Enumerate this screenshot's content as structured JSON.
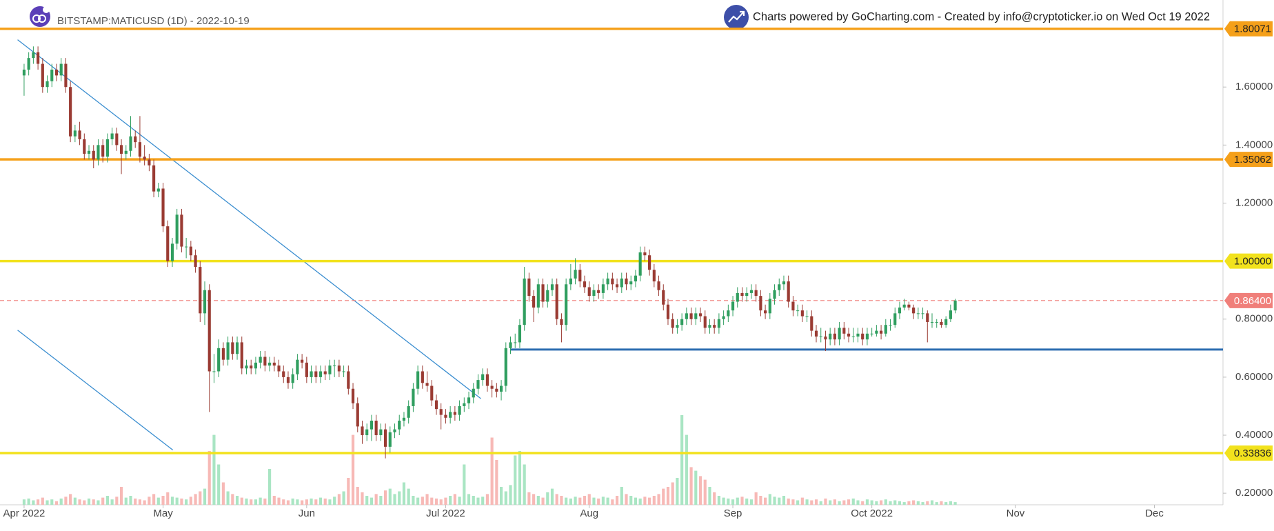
{
  "chart_data": {
    "type": "candlestick",
    "title": "BITSTAMP:MATICUSD (1D) - 2022-10-19",
    "attribution": "Charts powered by GoCharting.com - Created by info@cryptoticker.io on Wed Oct 19 2022",
    "up_color": "#2f9e5f",
    "down_color": "#9a3b33",
    "volume_up_color": "#a9e5c3",
    "volume_down_color": "#f7b9b6",
    "xlim": [
      -5.2,
      258.8
    ],
    "xticks": [
      {
        "value": 0,
        "label": "Apr 2022"
      },
      {
        "value": 30,
        "label": "May"
      },
      {
        "value": 61,
        "label": "Jun"
      },
      {
        "value": 91,
        "label": "Jul 2022"
      },
      {
        "value": 122,
        "label": "Aug"
      },
      {
        "value": 153,
        "label": "Sep"
      },
      {
        "value": 183,
        "label": "Oct 2022"
      },
      {
        "value": 214,
        "label": "Nov"
      },
      {
        "value": 244,
        "label": "Dec"
      }
    ],
    "ylim": [
      0.16,
      1.9
    ],
    "yticks": [
      {
        "value": 0.2,
        "label": "0.20000"
      },
      {
        "value": 0.4,
        "label": "0.40000"
      },
      {
        "value": 0.6,
        "label": "0.60000"
      },
      {
        "value": 0.8,
        "label": "0.80000"
      },
      {
        "value": 1.2,
        "label": "1.20000"
      },
      {
        "value": 1.4,
        "label": "1.40000"
      },
      {
        "value": 1.6,
        "label": "1.60000"
      }
    ],
    "levels": [
      {
        "value": 1.80071,
        "label": "1.80071",
        "color": "#f5a01a",
        "dashed": false
      },
      {
        "value": 1.35062,
        "label": "1.35062",
        "color": "#f5a01a",
        "dashed": false
      },
      {
        "value": 1.0,
        "label": "1.00000",
        "color": "#f2e21d",
        "dashed": false
      },
      {
        "value": 0.864,
        "label": "0.86400",
        "color": "#f07f7a",
        "dashed": true
      },
      {
        "value": 0.33836,
        "label": "0.33836",
        "color": "#f2e21d",
        "dashed": false
      }
    ],
    "drawings": [
      {
        "x": [
          105,
          258.8
        ],
        "y": [
          0.695,
          0.695
        ],
        "color": "#2b6cb0",
        "width": 3
      },
      {
        "x": [
          -1.4,
          98.6
        ],
        "y": [
          1.763,
          0.526
        ],
        "color": "#3b8ed0",
        "width": 1.3
      },
      {
        "x": [
          -1.4,
          32.1
        ],
        "y": [
          0.762,
          0.349
        ],
        "color": "#3b8ed0",
        "width": 1.3
      }
    ],
    "volume_lim": [
      0,
      100
    ],
    "ohlc": [
      [
        1.64,
        1.68,
        1.57,
        1.66
      ],
      [
        1.66,
        1.72,
        1.64,
        1.7
      ],
      [
        1.7,
        1.74,
        1.68,
        1.72
      ],
      [
        1.72,
        1.74,
        1.66,
        1.68
      ],
      [
        1.68,
        1.7,
        1.58,
        1.6
      ],
      [
        1.6,
        1.64,
        1.58,
        1.62
      ],
      [
        1.62,
        1.68,
        1.6,
        1.66
      ],
      [
        1.66,
        1.68,
        1.62,
        1.64
      ],
      [
        1.64,
        1.7,
        1.62,
        1.68
      ],
      [
        1.68,
        1.7,
        1.58,
        1.6
      ],
      [
        1.6,
        1.62,
        1.41,
        1.43
      ],
      [
        1.43,
        1.47,
        1.41,
        1.45
      ],
      [
        1.45,
        1.48,
        1.4,
        1.42
      ],
      [
        1.42,
        1.44,
        1.35,
        1.37
      ],
      [
        1.37,
        1.4,
        1.35,
        1.38
      ],
      [
        1.38,
        1.4,
        1.32,
        1.35
      ],
      [
        1.35,
        1.42,
        1.33,
        1.4
      ],
      [
        1.4,
        1.42,
        1.34,
        1.36
      ],
      [
        1.36,
        1.44,
        1.34,
        1.42
      ],
      [
        1.42,
        1.46,
        1.4,
        1.44
      ],
      [
        1.44,
        1.46,
        1.38,
        1.4
      ],
      [
        1.4,
        1.42,
        1.3,
        1.37
      ],
      [
        1.37,
        1.4,
        1.35,
        1.38
      ],
      [
        1.38,
        1.5,
        1.36,
        1.43
      ],
      [
        1.43,
        1.45,
        1.39,
        1.41
      ],
      [
        1.41,
        1.5,
        1.34,
        1.36
      ],
      [
        1.36,
        1.4,
        1.33,
        1.35
      ],
      [
        1.35,
        1.37,
        1.31,
        1.33
      ],
      [
        1.33,
        1.35,
        1.22,
        1.24
      ],
      [
        1.24,
        1.27,
        1.22,
        1.25
      ],
      [
        1.25,
        1.27,
        1.1,
        1.12
      ],
      [
        1.12,
        1.14,
        0.98,
        1.0
      ],
      [
        1.0,
        1.08,
        0.98,
        1.06
      ],
      [
        1.06,
        1.18,
        1.04,
        1.16
      ],
      [
        1.16,
        1.18,
        1.03,
        1.05
      ],
      [
        1.05,
        1.08,
        1.01,
        1.05
      ],
      [
        1.05,
        1.07,
        1.0,
        1.02
      ],
      [
        1.02,
        1.04,
        0.96,
        0.98
      ],
      [
        0.98,
        1.0,
        0.79,
        0.82
      ],
      [
        0.82,
        0.93,
        0.78,
        0.9
      ],
      [
        0.9,
        0.92,
        0.48,
        0.62
      ],
      [
        0.62,
        0.68,
        0.58,
        0.62
      ],
      [
        0.62,
        0.73,
        0.6,
        0.7
      ],
      [
        0.7,
        0.72,
        0.64,
        0.66
      ],
      [
        0.66,
        0.74,
        0.64,
        0.72
      ],
      [
        0.72,
        0.74,
        0.66,
        0.68
      ],
      [
        0.68,
        0.74,
        0.66,
        0.72
      ],
      [
        0.72,
        0.74,
        0.61,
        0.63
      ],
      [
        0.63,
        0.66,
        0.61,
        0.64
      ],
      [
        0.64,
        0.66,
        0.61,
        0.63
      ],
      [
        0.63,
        0.67,
        0.61,
        0.65
      ],
      [
        0.65,
        0.69,
        0.63,
        0.67
      ],
      [
        0.67,
        0.69,
        0.62,
        0.64
      ],
      [
        0.64,
        0.67,
        0.62,
        0.65
      ],
      [
        0.65,
        0.67,
        0.62,
        0.64
      ],
      [
        0.64,
        0.66,
        0.6,
        0.62
      ],
      [
        0.62,
        0.64,
        0.58,
        0.6
      ],
      [
        0.6,
        0.62,
        0.56,
        0.58
      ],
      [
        0.58,
        0.63,
        0.56,
        0.61
      ],
      [
        0.61,
        0.68,
        0.59,
        0.66
      ],
      [
        0.66,
        0.68,
        0.63,
        0.65
      ],
      [
        0.65,
        0.67,
        0.58,
        0.6
      ],
      [
        0.6,
        0.64,
        0.58,
        0.62
      ],
      [
        0.62,
        0.64,
        0.58,
        0.6
      ],
      [
        0.6,
        0.64,
        0.58,
        0.62
      ],
      [
        0.62,
        0.64,
        0.59,
        0.61
      ],
      [
        0.61,
        0.66,
        0.59,
        0.64
      ],
      [
        0.64,
        0.66,
        0.6,
        0.64
      ],
      [
        0.64,
        0.66,
        0.6,
        0.62
      ],
      [
        0.62,
        0.64,
        0.6,
        0.62
      ],
      [
        0.62,
        0.64,
        0.54,
        0.56
      ],
      [
        0.56,
        0.58,
        0.49,
        0.51
      ],
      [
        0.51,
        0.53,
        0.41,
        0.43
      ],
      [
        0.43,
        0.45,
        0.37,
        0.4
      ],
      [
        0.4,
        0.44,
        0.38,
        0.42
      ],
      [
        0.42,
        0.47,
        0.38,
        0.45
      ],
      [
        0.45,
        0.47,
        0.38,
        0.4
      ],
      [
        0.4,
        0.44,
        0.38,
        0.42
      ],
      [
        0.42,
        0.44,
        0.32,
        0.36
      ],
      [
        0.36,
        0.43,
        0.34,
        0.41
      ],
      [
        0.41,
        0.44,
        0.39,
        0.42
      ],
      [
        0.42,
        0.47,
        0.4,
        0.45
      ],
      [
        0.45,
        0.48,
        0.43,
        0.46
      ],
      [
        0.46,
        0.52,
        0.44,
        0.5
      ],
      [
        0.5,
        0.58,
        0.48,
        0.56
      ],
      [
        0.56,
        0.64,
        0.54,
        0.62
      ],
      [
        0.62,
        0.64,
        0.56,
        0.58
      ],
      [
        0.58,
        0.62,
        0.55,
        0.57
      ],
      [
        0.57,
        0.59,
        0.5,
        0.52
      ],
      [
        0.52,
        0.54,
        0.47,
        0.49
      ],
      [
        0.49,
        0.51,
        0.42,
        0.47
      ],
      [
        0.47,
        0.49,
        0.44,
        0.46
      ],
      [
        0.46,
        0.5,
        0.44,
        0.48
      ],
      [
        0.48,
        0.5,
        0.45,
        0.47
      ],
      [
        0.47,
        0.52,
        0.45,
        0.5
      ],
      [
        0.5,
        0.53,
        0.48,
        0.51
      ],
      [
        0.51,
        0.55,
        0.49,
        0.53
      ],
      [
        0.53,
        0.58,
        0.51,
        0.56
      ],
      [
        0.56,
        0.61,
        0.54,
        0.59
      ],
      [
        0.59,
        0.63,
        0.57,
        0.61
      ],
      [
        0.61,
        0.63,
        0.55,
        0.57
      ],
      [
        0.57,
        0.59,
        0.53,
        0.56
      ],
      [
        0.56,
        0.58,
        0.53,
        0.55
      ],
      [
        0.55,
        0.59,
        0.52,
        0.57
      ],
      [
        0.57,
        0.72,
        0.55,
        0.7
      ],
      [
        0.7,
        0.74,
        0.68,
        0.72
      ],
      [
        0.72,
        0.75,
        0.7,
        0.72
      ],
      [
        0.72,
        0.8,
        0.7,
        0.78
      ],
      [
        0.78,
        0.98,
        0.76,
        0.94
      ],
      [
        0.94,
        0.96,
        0.86,
        0.88
      ],
      [
        0.88,
        0.9,
        0.79,
        0.84
      ],
      [
        0.84,
        0.94,
        0.82,
        0.92
      ],
      [
        0.92,
        0.94,
        0.84,
        0.86
      ],
      [
        0.86,
        0.92,
        0.84,
        0.9
      ],
      [
        0.9,
        0.94,
        0.88,
        0.92
      ],
      [
        0.92,
        0.94,
        0.78,
        0.8
      ],
      [
        0.8,
        0.82,
        0.72,
        0.78
      ],
      [
        0.78,
        0.94,
        0.76,
        0.92
      ],
      [
        0.92,
        0.99,
        0.9,
        0.94
      ],
      [
        0.94,
        1.01,
        0.92,
        0.97
      ],
      [
        0.97,
        0.99,
        0.91,
        0.93
      ],
      [
        0.93,
        0.95,
        0.89,
        0.91
      ],
      [
        0.91,
        0.93,
        0.86,
        0.88
      ],
      [
        0.88,
        0.92,
        0.86,
        0.9
      ],
      [
        0.9,
        0.92,
        0.87,
        0.89
      ],
      [
        0.89,
        0.94,
        0.87,
        0.92
      ],
      [
        0.92,
        0.96,
        0.9,
        0.94
      ],
      [
        0.94,
        0.96,
        0.9,
        0.92
      ],
      [
        0.92,
        0.94,
        0.89,
        0.91
      ],
      [
        0.91,
        0.96,
        0.89,
        0.94
      ],
      [
        0.94,
        0.96,
        0.9,
        0.92
      ],
      [
        0.92,
        0.95,
        0.9,
        0.93
      ],
      [
        0.93,
        0.97,
        0.91,
        0.95
      ],
      [
        0.95,
        1.05,
        0.93,
        1.03
      ],
      [
        1.03,
        1.05,
        1.0,
        1.02
      ],
      [
        1.02,
        1.04,
        0.95,
        0.97
      ],
      [
        0.97,
        0.99,
        0.91,
        0.93
      ],
      [
        0.93,
        0.95,
        0.88,
        0.9
      ],
      [
        0.9,
        0.92,
        0.83,
        0.85
      ],
      [
        0.85,
        0.87,
        0.78,
        0.8
      ],
      [
        0.8,
        0.82,
        0.75,
        0.77
      ],
      [
        0.77,
        0.8,
        0.75,
        0.78
      ],
      [
        0.78,
        0.82,
        0.76,
        0.8
      ],
      [
        0.8,
        0.84,
        0.78,
        0.82
      ],
      [
        0.82,
        0.84,
        0.78,
        0.8
      ],
      [
        0.8,
        0.84,
        0.78,
        0.82
      ],
      [
        0.82,
        0.84,
        0.79,
        0.81
      ],
      [
        0.81,
        0.83,
        0.75,
        0.77
      ],
      [
        0.77,
        0.8,
        0.75,
        0.78
      ],
      [
        0.78,
        0.8,
        0.75,
        0.77
      ],
      [
        0.77,
        0.82,
        0.75,
        0.8
      ],
      [
        0.8,
        0.83,
        0.78,
        0.81
      ],
      [
        0.81,
        0.85,
        0.79,
        0.83
      ],
      [
        0.83,
        0.88,
        0.81,
        0.86
      ],
      [
        0.86,
        0.91,
        0.84,
        0.89
      ],
      [
        0.89,
        0.91,
        0.86,
        0.88
      ],
      [
        0.88,
        0.91,
        0.86,
        0.89
      ],
      [
        0.89,
        0.92,
        0.87,
        0.9
      ],
      [
        0.9,
        0.92,
        0.86,
        0.88
      ],
      [
        0.88,
        0.9,
        0.81,
        0.83
      ],
      [
        0.83,
        0.85,
        0.8,
        0.82
      ],
      [
        0.82,
        0.89,
        0.8,
        0.87
      ],
      [
        0.87,
        0.92,
        0.85,
        0.9
      ],
      [
        0.9,
        0.94,
        0.88,
        0.92
      ],
      [
        0.92,
        0.95,
        0.9,
        0.93
      ],
      [
        0.93,
        0.95,
        0.84,
        0.86
      ],
      [
        0.86,
        0.88,
        0.81,
        0.83
      ],
      [
        0.83,
        0.85,
        0.81,
        0.83
      ],
      [
        0.83,
        0.85,
        0.79,
        0.81
      ],
      [
        0.81,
        0.83,
        0.79,
        0.81
      ],
      [
        0.81,
        0.83,
        0.74,
        0.76
      ],
      [
        0.76,
        0.78,
        0.72,
        0.74
      ],
      [
        0.74,
        0.77,
        0.72,
        0.74
      ],
      [
        0.74,
        0.76,
        0.69,
        0.73
      ],
      [
        0.73,
        0.77,
        0.71,
        0.75
      ],
      [
        0.75,
        0.77,
        0.71,
        0.73
      ],
      [
        0.73,
        0.79,
        0.71,
        0.77
      ],
      [
        0.77,
        0.79,
        0.73,
        0.75
      ],
      [
        0.75,
        0.77,
        0.72,
        0.74
      ],
      [
        0.74,
        0.77,
        0.72,
        0.74
      ],
      [
        0.74,
        0.77,
        0.72,
        0.75
      ],
      [
        0.75,
        0.77,
        0.71,
        0.73
      ],
      [
        0.73,
        0.77,
        0.71,
        0.75
      ],
      [
        0.75,
        0.77,
        0.74,
        0.75
      ],
      [
        0.75,
        0.78,
        0.74,
        0.76
      ],
      [
        0.76,
        0.78,
        0.73,
        0.75
      ],
      [
        0.75,
        0.8,
        0.74,
        0.78
      ],
      [
        0.78,
        0.8,
        0.76,
        0.78
      ],
      [
        0.78,
        0.84,
        0.77,
        0.82
      ],
      [
        0.82,
        0.86,
        0.8,
        0.84
      ],
      [
        0.84,
        0.87,
        0.83,
        0.85
      ],
      [
        0.85,
        0.86,
        0.83,
        0.84
      ],
      [
        0.84,
        0.85,
        0.8,
        0.82
      ],
      [
        0.82,
        0.84,
        0.8,
        0.82
      ],
      [
        0.82,
        0.84,
        0.8,
        0.82
      ],
      [
        0.82,
        0.83,
        0.72,
        0.79
      ],
      [
        0.79,
        0.82,
        0.77,
        0.79
      ],
      [
        0.79,
        0.8,
        0.77,
        0.79
      ],
      [
        0.79,
        0.8,
        0.77,
        0.78
      ],
      [
        0.78,
        0.81,
        0.77,
        0.8
      ],
      [
        0.8,
        0.85,
        0.79,
        0.83
      ],
      [
        0.83,
        0.87,
        0.82,
        0.864
      ]
    ],
    "volume": [
      6,
      7,
      5,
      6,
      8,
      5,
      6,
      4,
      7,
      9,
      12,
      8,
      6,
      5,
      7,
      6,
      5,
      8,
      10,
      6,
      9,
      20,
      8,
      10,
      7,
      6,
      5,
      9,
      12,
      8,
      10,
      14,
      9,
      8,
      7,
      6,
      9,
      12,
      15,
      18,
      60,
      78,
      45,
      25,
      15,
      12,
      10,
      8,
      7,
      6,
      6,
      8,
      7,
      40,
      10,
      8,
      6,
      5,
      7,
      6,
      5,
      6,
      7,
      6,
      8,
      7,
      6,
      9,
      12,
      15,
      30,
      78,
      20,
      14,
      10,
      8,
      12,
      10,
      16,
      18,
      12,
      15,
      25,
      18,
      10,
      8,
      9,
      12,
      8,
      7,
      6,
      8,
      10,
      12,
      9,
      45,
      12,
      10,
      8,
      9,
      12,
      75,
      50,
      20,
      15,
      22,
      55,
      60,
      45,
      14,
      12,
      10,
      8,
      14,
      18,
      12,
      10,
      8,
      7,
      9,
      8,
      10,
      12,
      8,
      7,
      9,
      8,
      6,
      10,
      20,
      12,
      10,
      8,
      7,
      9,
      8,
      10,
      12,
      18,
      20,
      25,
      30,
      100,
      78,
      42,
      38,
      32,
      28,
      20,
      14,
      10,
      8,
      7,
      6,
      8,
      9,
      7,
      6,
      14,
      10,
      8,
      12,
      9,
      8,
      10,
      7,
      6,
      5,
      8,
      6,
      5,
      6,
      4,
      7,
      5,
      6,
      4,
      5,
      6,
      7,
      5,
      4,
      6,
      5,
      4,
      5,
      6,
      4,
      5,
      4,
      3,
      4,
      5,
      4,
      3,
      4,
      5,
      3,
      4,
      3,
      4,
      3
    ]
  }
}
